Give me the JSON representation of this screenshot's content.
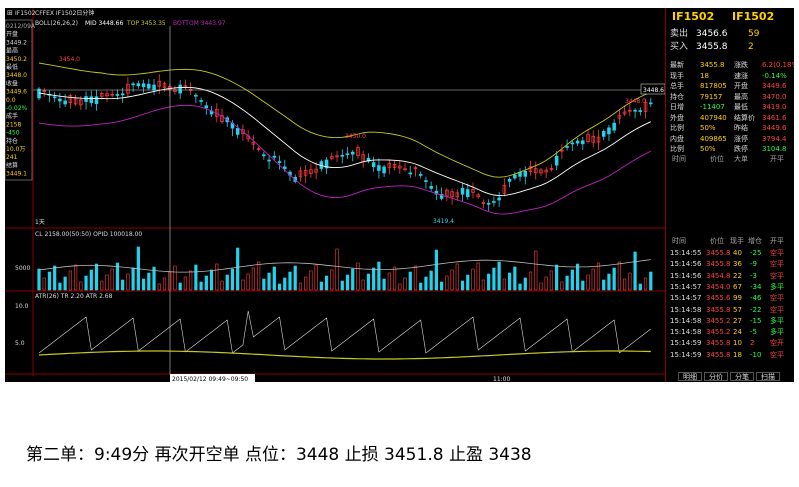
{
  "window": {
    "title": "IF1502",
    "menu_icon": "window-menu-icon"
  },
  "main_header": {
    "symbol": "CFFEX IF1502日分钟",
    "indicator": "BOLL(26,26,2)",
    "mid_label": "MID",
    "mid_value": "3448.66",
    "top_label": "TOP",
    "top_value": "3453.35",
    "bottom_label": "BOTTOM",
    "bottom_value": "3443.97"
  },
  "price_labels": {
    "high": "3454.0",
    "mid_high": "3450.0",
    "low": "3419.4",
    "right_high": "3448.0",
    "cursor_price": "3448.6"
  },
  "period_label": "1天",
  "volume_header": {
    "name": "CL",
    "value": "2158.00(50:50)",
    "oi_label": "OPID",
    "oi_value": "100018.00"
  },
  "volume_axis": {
    "tick": "5000"
  },
  "atr_header": {
    "name": "ATR(26)",
    "tr_label": "TR",
    "tr_value": "2.20",
    "atr_label": "ATR",
    "atr_value": "2.68"
  },
  "atr_axis": {
    "ticks": [
      "10.0",
      "5.0"
    ]
  },
  "time_axis": {
    "cursor_time": "2015/02/12 09:49~09:50",
    "tick": "11:00"
  },
  "info_box": {
    "items": [
      "0212/09A",
      "开盘",
      "3449.2",
      "最高",
      "3450.2",
      "最低",
      "3448.0",
      "收盘",
      "3449.6",
      "0.0",
      "-0.02%",
      "成手",
      "2158",
      "-450",
      "持仓",
      "10.0万",
      "241",
      "结算",
      "3449.1"
    ]
  },
  "right_panel": {
    "title_left": "IF1502",
    "title_right": "IF1502",
    "ask_label": "卖出",
    "ask_price": "3456.6",
    "ask_vol": "59",
    "bid_label": "买入",
    "bid_price": "3455.8",
    "bid_vol": "2",
    "quotes": [
      {
        "l1": "最新",
        "v1": "3455.8",
        "l2": "涨跌",
        "v2": "6.2(0.18%"
      },
      {
        "l1": "现手",
        "v1": "18",
        "l2": "速涨",
        "v2": "-0.14%"
      },
      {
        "l1": "总手",
        "v1": "817805",
        "l2": "开盘",
        "v2": "3449.6"
      },
      {
        "l1": "持仓",
        "v1": "79157",
        "l2": "最高",
        "v2": "3470.0"
      },
      {
        "l1": "日增",
        "v1": "-11407",
        "l2": "最低",
        "v2": "3419.0"
      },
      {
        "l1": "外盘",
        "v1": "407940",
        "l2": "结算价",
        "v2": "3461.6"
      },
      {
        "l1": "比例",
        "v1": "50%",
        "l2": "昨结",
        "v2": "3449.6"
      },
      {
        "l1": "内盘",
        "v1": "409865",
        "l2": "涨停",
        "v2": "3794.4"
      },
      {
        "l1": "比例",
        "v1": "50%",
        "l2": "跌停",
        "v2": "3104.8"
      }
    ],
    "col_headers": {
      "time": "时间",
      "price": "价位",
      "bigorder": "大单",
      "nature": "开平"
    },
    "trade_headers": {
      "time": "时间",
      "price": "价位",
      "vol": "现手",
      "oi": "增仓",
      "nature": "开平"
    },
    "trades": [
      {
        "time": "15:14:55",
        "price": "3455.8",
        "vol": "40",
        "oi": "-25",
        "nature": "空平"
      },
      {
        "time": "15:14:56",
        "price": "3455.8",
        "vol": "36",
        "oi": "-9",
        "nature": "空平"
      },
      {
        "time": "15:14:56",
        "price": "3454.8",
        "vol": "22",
        "oi": "-3",
        "nature": "空平"
      },
      {
        "time": "15:14:57",
        "price": "3454.0",
        "vol": "67",
        "oi": "-34",
        "nature": "多平"
      },
      {
        "time": "15:14:57",
        "price": "3455.6",
        "vol": "99",
        "oi": "-46",
        "nature": "空平"
      },
      {
        "time": "15:14:58",
        "price": "3455.8",
        "vol": "57",
        "oi": "-22",
        "nature": "空平"
      },
      {
        "time": "15:14:58",
        "price": "3455.2",
        "vol": "27",
        "oi": "-15",
        "nature": "多平"
      },
      {
        "time": "15:14:58",
        "price": "3455.2",
        "vol": "24",
        "oi": "-5",
        "nature": "多平"
      },
      {
        "time": "15:14:59",
        "price": "3455.8",
        "vol": "10",
        "oi": "2",
        "nature": "空开"
      },
      {
        "time": "15:14:59",
        "price": "3455.8",
        "vol": "18",
        "oi": "-10",
        "nature": "空平"
      }
    ],
    "tabs": [
      "明细",
      "分价",
      "分笔",
      "扫描"
    ]
  },
  "colors": {
    "up": "#ff3b3b",
    "down": "#22d3ee",
    "boll_mid": "#ffffff",
    "boll_top": "#c8c820",
    "boll_bottom": "#c020c0",
    "axis": "#8a0000"
  },
  "caption": "第二单：9:49分 再次开空单 点位：3448 止损 3451.8 止盈 3438"
}
